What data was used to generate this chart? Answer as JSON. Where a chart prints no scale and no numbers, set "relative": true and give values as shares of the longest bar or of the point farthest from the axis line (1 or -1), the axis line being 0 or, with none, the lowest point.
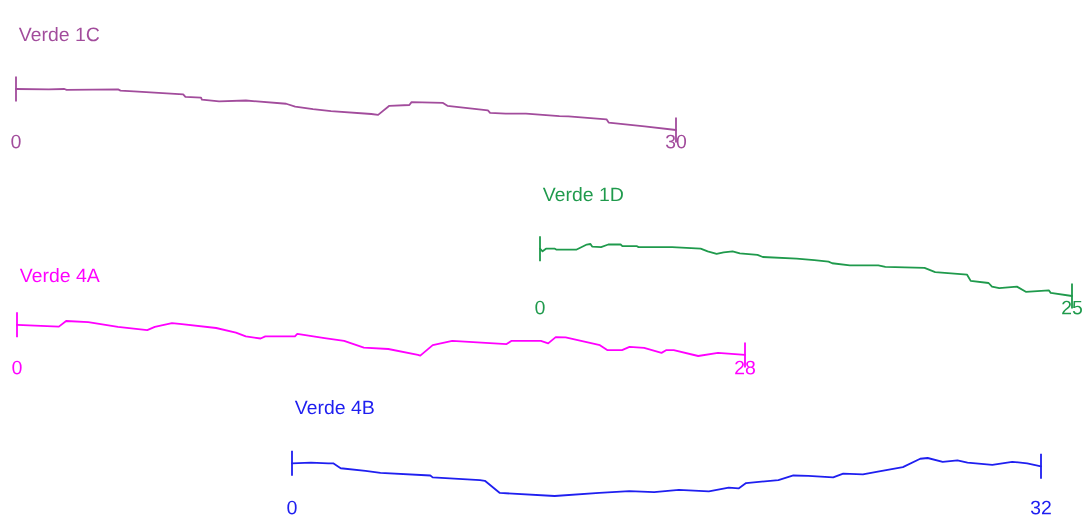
{
  "chart_data": [
    {
      "type": "line",
      "title": "Verde 1C",
      "relative": true,
      "xlim": [
        0,
        30
      ],
      "xticks": [
        0,
        30
      ],
      "x": [
        0,
        1.49,
        2.2,
        2.3,
        4.64,
        4.75,
        5.36,
        7.6,
        7.7,
        8.41,
        8.45,
        9.23,
        10.45,
        12.28,
        12.69,
        13.5,
        14.32,
        16.15,
        16.46,
        16.97,
        17.88,
        17.98,
        19.41,
        19.61,
        21.45,
        21.55,
        22.26,
        23.18,
        24.7,
        25.11,
        26.84,
        26.94,
        28.57,
        30
      ],
      "series": [
        {
          "color": "#a24c9c",
          "values": [
            1.0,
            0.99,
            1.0,
            0.98,
            0.99,
            0.96,
            0.94,
            0.87,
            0.81,
            0.79,
            0.74,
            0.7,
            0.72,
            0.64,
            0.57,
            0.51,
            0.46,
            0.39,
            0.37,
            0.59,
            0.61,
            0.68,
            0.66,
            0.59,
            0.48,
            0.42,
            0.4,
            0.4,
            0.34,
            0.33,
            0.26,
            0.18,
            0.09,
            0.0
          ]
        }
      ]
    },
    {
      "type": "line",
      "title": "Verde 1D",
      "relative": true,
      "xlim": [
        0,
        25
      ],
      "xticks": [
        0,
        25
      ],
      "x": [
        0,
        0.12,
        0.28,
        0.7,
        0.78,
        1.7,
        2.2,
        2.37,
        2.45,
        2.87,
        3.21,
        3.79,
        3.87,
        4.54,
        4.63,
        6.21,
        7.55,
        7.88,
        8.3,
        8.63,
        9.05,
        9.39,
        10.22,
        10.47,
        12.06,
        12.89,
        13.56,
        13.73,
        14.56,
        15.9,
        16.23,
        18.07,
        18.57,
        20.07,
        20.24,
        21.08,
        21.24,
        21.58,
        22.41,
        22.83,
        23.91,
        24.0,
        25
      ],
      "series": [
        {
          "color": "#1f9a4c",
          "values": [
            0.91,
            0.86,
            0.91,
            0.91,
            0.89,
            0.89,
            0.99,
            1.0,
            0.95,
            0.94,
            0.99,
            0.99,
            0.96,
            0.96,
            0.94,
            0.94,
            0.91,
            0.86,
            0.81,
            0.84,
            0.86,
            0.82,
            0.79,
            0.75,
            0.72,
            0.69,
            0.66,
            0.63,
            0.59,
            0.59,
            0.56,
            0.54,
            0.46,
            0.41,
            0.29,
            0.25,
            0.18,
            0.15,
            0.18,
            0.08,
            0.11,
            0.06,
            0.0
          ]
        }
      ]
    },
    {
      "type": "line",
      "title": "Verde 4A",
      "relative": true,
      "xlim": [
        0,
        28
      ],
      "xticks": [
        0,
        28
      ],
      "x": [
        0,
        1.61,
        1.89,
        2.74,
        3.88,
        5.01,
        5.3,
        5.96,
        6.34,
        7.66,
        8.42,
        8.8,
        9.37,
        9.55,
        10.69,
        10.78,
        11.83,
        12.58,
        13.34,
        14.28,
        15.42,
        15.51,
        15.99,
        16.74,
        18.83,
        19.01,
        20.15,
        20.43,
        20.72,
        21.1,
        22.42,
        22.7,
        23.27,
        23.56,
        24.12,
        24.79,
        24.98,
        25.26,
        26.2,
        26.96,
        28
      ],
      "series": [
        {
          "color": "#ff00ff",
          "values": [
            0.89,
            0.84,
            1.0,
            0.97,
            0.83,
            0.74,
            0.83,
            0.94,
            0.91,
            0.8,
            0.67,
            0.56,
            0.5,
            0.56,
            0.56,
            0.63,
            0.51,
            0.43,
            0.24,
            0.2,
            0.03,
            0.01,
            0.31,
            0.43,
            0.34,
            0.43,
            0.43,
            0.36,
            0.54,
            0.53,
            0.31,
            0.17,
            0.17,
            0.26,
            0.23,
            0.09,
            0.17,
            0.17,
            0.0,
            0.09,
            0.03
          ]
        }
      ]
    },
    {
      "type": "line",
      "title": "Verde 4B",
      "relative": true,
      "xlim": [
        0,
        32
      ],
      "xticks": [
        0,
        32
      ],
      "x": [
        0,
        0.81,
        1.55,
        1.76,
        2.08,
        3.14,
        3.78,
        5.91,
        6.01,
        8.03,
        8.24,
        8.88,
        11.22,
        13.13,
        14.41,
        15.47,
        16.53,
        17.81,
        18.66,
        19.08,
        19.4,
        20.78,
        21.42,
        22.06,
        23.12,
        23.55,
        24.39,
        25.03,
        26.1,
        26.84,
        27.16,
        27.8,
        28.43,
        28.86,
        29.92,
        30.77,
        31.41,
        32
      ],
      "series": [
        {
          "color": "#1f1ff0",
          "values": [
            0.86,
            0.88,
            0.86,
            0.86,
            0.73,
            0.66,
            0.61,
            0.54,
            0.49,
            0.42,
            0.4,
            0.08,
            0.0,
            0.08,
            0.13,
            0.1,
            0.16,
            0.12,
            0.22,
            0.2,
            0.34,
            0.42,
            0.54,
            0.53,
            0.49,
            0.59,
            0.57,
            0.64,
            0.76,
            0.98,
            1.0,
            0.9,
            0.94,
            0.88,
            0.82,
            0.9,
            0.86,
            0.78
          ]
        }
      ]
    }
  ]
}
